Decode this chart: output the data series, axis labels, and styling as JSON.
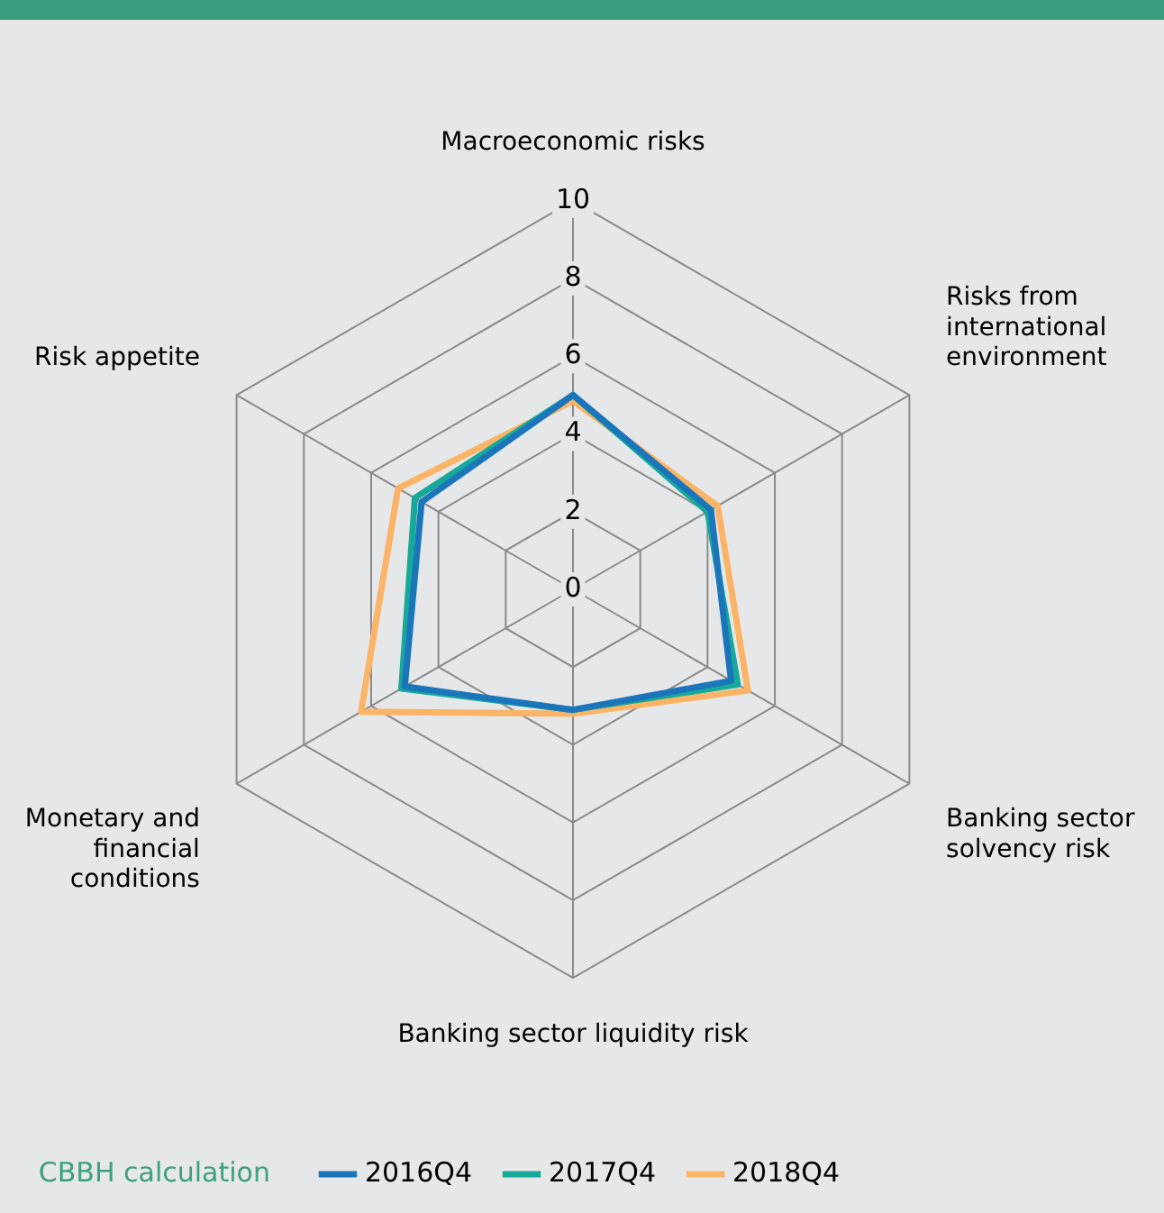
{
  "chart_data": {
    "type": "radar",
    "categories": [
      "Macroeconomic risks",
      "Risks from international environment",
      "Banking sector solvency risk",
      "Banking sector liquidity risk",
      "Monetary and financial conditions",
      "Risk appetite"
    ],
    "series": [
      {
        "name": "2016Q4",
        "color": "#1a75bb",
        "values": [
          5.0,
          4.1,
          4.7,
          3.1,
          5.0,
          4.5
        ]
      },
      {
        "name": "2017Q4",
        "color": "#16a99a",
        "values": [
          5.0,
          4.0,
          4.9,
          3.1,
          5.1,
          4.7
        ]
      },
      {
        "name": "2018Q4",
        "color": "#fbb466",
        "values": [
          4.85,
          4.3,
          5.2,
          3.2,
          6.3,
          5.2
        ]
      }
    ],
    "ylim": [
      0,
      10
    ],
    "yticks": [
      0,
      2,
      4,
      6,
      8,
      10
    ],
    "grid": true,
    "legend": "bottom",
    "marker": "none",
    "line_style": "solid",
    "annotations": [
      "CBBH calculation"
    ]
  }
}
